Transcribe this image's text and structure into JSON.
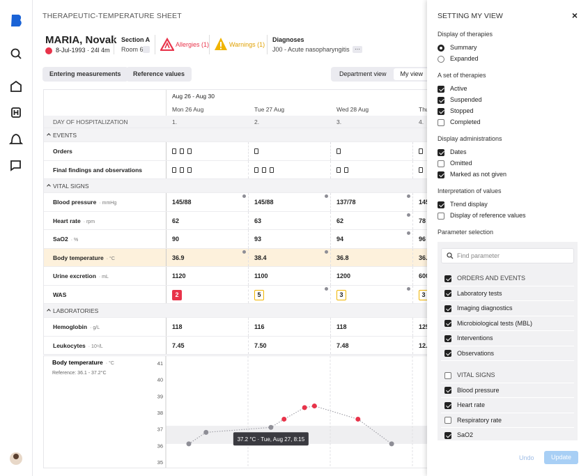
{
  "header": {
    "title": "THERAPEUTIC-TEMPERATURE SHEET"
  },
  "patient": {
    "name": "MARIA, Novak",
    "birth": "8-Jul-1993 · 24l 4m",
    "section": "Section A",
    "room": "Room 6",
    "allergies": "Allergies (1)",
    "warnings": "Warnings (1)",
    "diagnoses_label": "Diagnoses",
    "diagnosis": "J00 - Acute nasopharyngitis",
    "more": "···"
  },
  "toolbar": {
    "buttons": [
      "Entering measurements",
      "Reference values"
    ],
    "views": [
      "Department view",
      "My view"
    ],
    "active_view": 1
  },
  "table": {
    "range": "Aug 26 - Aug 30",
    "days": [
      "Mon 26 Aug",
      "Tue 27 Aug",
      "Wed 28 Aug",
      "Thu"
    ],
    "day_row": {
      "label": "DAY OF HOSPITALIZATION",
      "values": [
        "1.",
        "2.",
        "3.",
        "4."
      ]
    },
    "groups": [
      {
        "title": "EVENTS",
        "rows": [
          {
            "label": "Orders",
            "icons": [
              3,
              1,
              1,
              1
            ]
          },
          {
            "label": "Final findings and observations",
            "icons": [
              3,
              3,
              2,
              1
            ]
          }
        ]
      },
      {
        "title": "VITAL SIGNS",
        "rows": [
          {
            "label": "Blood pressure",
            "unit": "· mmHg",
            "values": [
              "145/88",
              "145/88",
              "137/78",
              "145"
            ],
            "flags": [
              true,
              true,
              true,
              false
            ]
          },
          {
            "label": "Heart rate",
            "unit": "· rpm",
            "values": [
              62,
              63,
              62,
              78
            ],
            "flags": [
              false,
              false,
              true,
              false
            ]
          },
          {
            "label": "SaO2",
            "unit": "· %",
            "values": [
              90,
              93,
              94,
              96
            ],
            "flags": [
              false,
              false,
              true,
              false
            ]
          },
          {
            "label": "Body temperature",
            "unit": "· °C",
            "values": [
              36.9,
              38.4,
              36.8,
              "36."
            ],
            "flags": [
              true,
              true,
              false,
              false
            ],
            "highlight": true
          },
          {
            "label": "Urine excretion",
            "unit": "· mL",
            "values": [
              1120,
              1100,
              1200,
              600
            ],
            "flags": [
              false,
              false,
              false,
              false
            ]
          },
          {
            "label": "WAS",
            "values": [
              2,
              5,
              3,
              3
            ],
            "badge_colors": [
              "#e8334a",
              "#f0b400",
              "#f0b400",
              "#f0b400"
            ],
            "badge_filled": [
              true,
              false,
              false,
              false
            ],
            "flags": [
              false,
              true,
              true,
              false
            ]
          }
        ]
      },
      {
        "title": "LABORATORIES",
        "rows": [
          {
            "label": "Hemoglobin",
            "unit": "· g/L",
            "values": [
              118,
              116,
              118,
              125
            ]
          },
          {
            "label": "Leukocytes",
            "unit": "· 10⁹/L",
            "values": [
              "7.45",
              "7.50",
              "7.48",
              "12."
            ]
          }
        ]
      }
    ]
  },
  "chart_data": {
    "type": "line",
    "title": "Body temperature",
    "unit": "· °C",
    "reference": "Reference: 36.1 - 37.2°C",
    "reference_range": [
      36.1,
      37.2
    ],
    "x": [
      0.28,
      0.49,
      1.28,
      1.44,
      1.69,
      1.81,
      2.34,
      2.75
    ],
    "series": [
      {
        "values": [
          36.1,
          36.8,
          37.1,
          37.6,
          38.3,
          38.4,
          37.6,
          36.1
        ],
        "color": "#8e8e96",
        "alert_color": "#e8334a"
      }
    ],
    "xlim": [
      0,
      3.19
    ],
    "ylim": [
      34.7,
      41.3
    ],
    "yticks": [
      35,
      36,
      37,
      38,
      39,
      40,
      41
    ],
    "tooltip": "37.2 °C · Tue, Aug 27, 8:15"
  },
  "settings": {
    "title": "SETTING MY VIEW",
    "close": "×",
    "groups": [
      {
        "title": "Display of therapies",
        "radio": true,
        "options": [
          {
            "label": "Summary",
            "checked": true
          },
          {
            "label": "Expanded",
            "checked": false
          }
        ]
      },
      {
        "title": "A set of therapies",
        "options": [
          {
            "label": "Active",
            "checked": true
          },
          {
            "label": "Suspended",
            "checked": true
          },
          {
            "label": "Stopped",
            "checked": true
          },
          {
            "label": "Completed",
            "checked": false
          }
        ]
      },
      {
        "title": "Display administrations",
        "options": [
          {
            "label": "Dates",
            "checked": true
          },
          {
            "label": "Omitted",
            "checked": false
          },
          {
            "label": "Marked as not given",
            "checked": true
          }
        ]
      },
      {
        "title": "Interpretation of values",
        "options": [
          {
            "label": "Trend display",
            "checked": true
          },
          {
            "label": "Display of reference values",
            "checked": false
          }
        ]
      }
    ],
    "parameter_title": "Parameter selection",
    "search": "Find parameter",
    "parameters": [
      {
        "label": "ORDERS AND EVENTS",
        "checked": true,
        "group": true
      },
      {
        "label": "Laboratory tests",
        "checked": true
      },
      {
        "label": "Imaging diagnostics",
        "checked": true
      },
      {
        "label": "Microbiological tests (MBL)",
        "checked": true
      },
      {
        "label": "Interventions",
        "checked": true
      },
      {
        "label": "Observations",
        "checked": true
      },
      {
        "label": "VITAL SIGNS",
        "checked": false,
        "group": true
      },
      {
        "label": "Blood pressure",
        "checked": true
      },
      {
        "label": "Heart rate",
        "checked": true
      },
      {
        "label": "Respiratory rate",
        "checked": false
      },
      {
        "label": "SaO2",
        "checked": true
      }
    ],
    "undo": "Undo",
    "update": "Update"
  }
}
